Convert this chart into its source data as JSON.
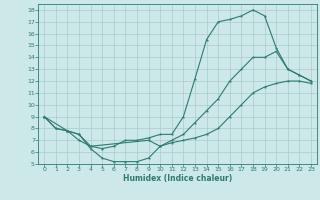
{
  "xlabel": "Humidex (Indice chaleur)",
  "bg_color": "#cce8e8",
  "grid_color": "#aacccc",
  "line_color": "#2e7b6e",
  "xlim": [
    -0.5,
    23.5
  ],
  "ylim": [
    5,
    18.5
  ],
  "xticks": [
    0,
    1,
    2,
    3,
    4,
    5,
    6,
    7,
    8,
    9,
    10,
    11,
    12,
    13,
    14,
    15,
    16,
    17,
    18,
    19,
    20,
    21,
    22,
    23
  ],
  "yticks": [
    5,
    6,
    7,
    8,
    9,
    10,
    11,
    12,
    13,
    14,
    15,
    16,
    17,
    18
  ],
  "curve1_x": [
    0,
    1,
    2,
    3,
    4,
    5,
    6,
    7,
    8,
    9,
    10,
    11,
    12,
    13,
    14,
    15,
    16,
    17,
    18,
    19,
    20,
    21,
    22,
    23
  ],
  "curve1_y": [
    9,
    8,
    7.8,
    7.5,
    6.5,
    6.3,
    6.5,
    7,
    7,
    7.2,
    7.5,
    7.5,
    9,
    12.2,
    15.5,
    17,
    17.2,
    17.5,
    18,
    17.5,
    14.8,
    13,
    12.5,
    12
  ],
  "curve2_x": [
    0,
    1,
    2,
    3,
    4,
    5,
    6,
    7,
    8,
    9,
    10,
    11,
    12,
    13,
    14,
    15,
    16,
    17,
    18,
    19,
    20,
    21,
    22,
    23
  ],
  "curve2_y": [
    9,
    8,
    7.8,
    7.5,
    6.3,
    5.5,
    5.2,
    5.2,
    5.2,
    5.5,
    6.5,
    6.8,
    7,
    7.2,
    7.5,
    8,
    9,
    10,
    11,
    11.5,
    11.8,
    12,
    12,
    11.8
  ],
  "curve3_x": [
    0,
    2,
    3,
    4,
    9,
    10,
    11,
    12,
    13,
    14,
    15,
    16,
    17,
    18,
    19,
    20,
    21,
    22,
    23
  ],
  "curve3_y": [
    9,
    7.8,
    7,
    6.5,
    7,
    6.5,
    7,
    7.5,
    8.5,
    9.5,
    10.5,
    12,
    13,
    14,
    14,
    14.5,
    13,
    12.5,
    12
  ]
}
